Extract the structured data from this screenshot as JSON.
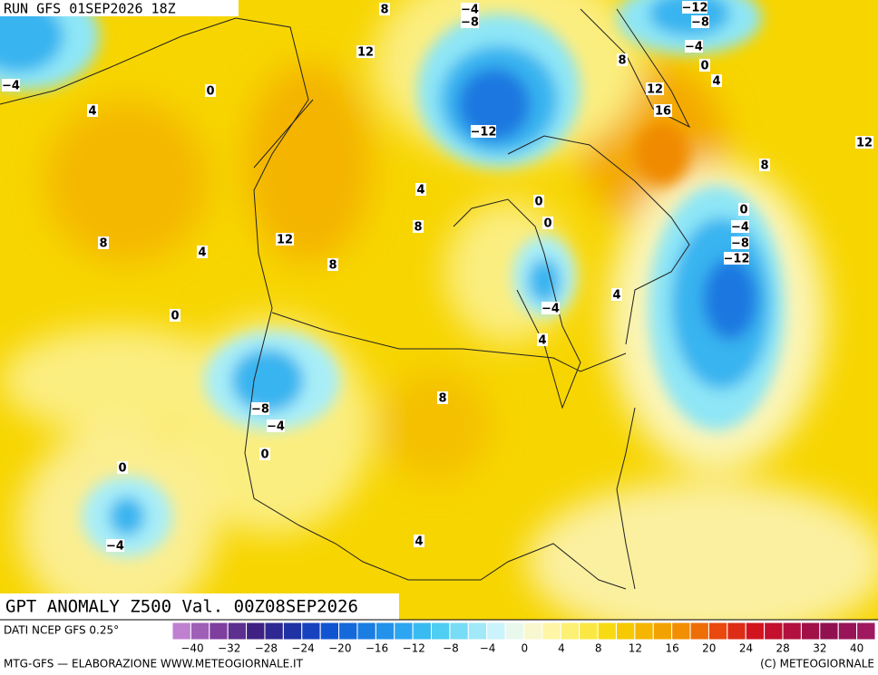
{
  "header": {
    "run": "RUN GFS 01SEP2026 18Z"
  },
  "map": {
    "title": "GPT ANOMALY Z500 Val. 00Z08SEP2026",
    "contour_labels": [
      -4,
      -8,
      -12,
      -8,
      -4,
      0,
      4,
      8,
      8,
      12,
      12,
      16,
      -12,
      -4,
      0,
      4,
      12,
      8,
      4,
      0,
      0,
      8,
      0,
      -4,
      -8,
      -12,
      8,
      4,
      12,
      8,
      4,
      -4,
      0,
      4,
      8,
      -8,
      -4,
      0,
      0,
      -4,
      4
    ]
  },
  "colorbar": {
    "source": "DATI NCEP GFS 0.25°",
    "labels": [
      -40,
      -32,
      -28,
      -24,
      -20,
      -16,
      -12,
      -8,
      -4,
      0,
      4,
      8,
      12,
      16,
      20,
      24,
      28,
      32,
      40
    ]
  },
  "footer": {
    "left": "MTG-GFS — ELABORAZIONE WWW.METEOGIORNALE.IT",
    "right": "(C) METEOGIORNALE"
  }
}
